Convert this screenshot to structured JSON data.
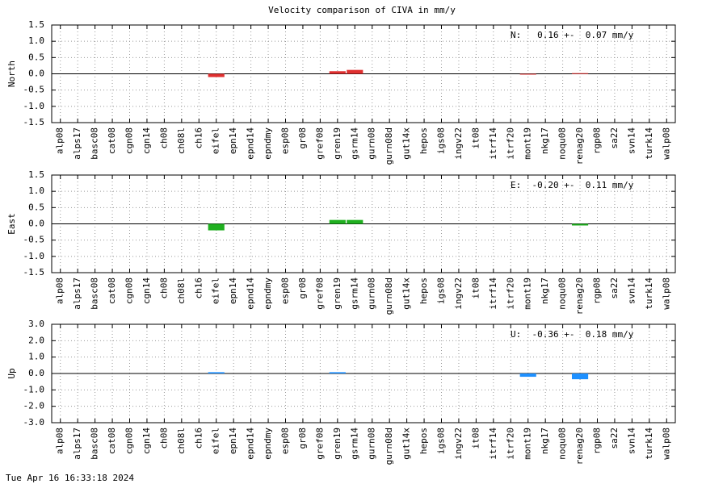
{
  "title": "Velocity comparison of CIVA in mm/y",
  "footer": "Tue Apr 16 16:33:18 2024",
  "chart_data": [
    {
      "type": "bar",
      "ylabel": "North",
      "annotation": "N:   0.16 +-  0.07 mm/y",
      "color": "#e03030",
      "grid": true,
      "categories": [
        "alp08",
        "alps17",
        "basc08",
        "cat08",
        "cgn08",
        "cgn14",
        "ch08",
        "ch08l",
        "ch16",
        "eifel",
        "epn14",
        "epnd14",
        "epndmy",
        "esp08",
        "gr08",
        "gref08",
        "gren19",
        "gsrm14",
        "gurn08",
        "gurn08d",
        "gut14x",
        "hepos",
        "igs08",
        "ingv22",
        "it08",
        "itrf14",
        "itrf20",
        "mont19",
        "nkg17",
        "noqu08",
        "renag20",
        "rgp08",
        "sa22",
        "svn14",
        "turk14",
        "walp08"
      ],
      "values": [
        null,
        null,
        null,
        null,
        null,
        null,
        null,
        null,
        null,
        -0.1,
        null,
        null,
        null,
        null,
        null,
        null,
        0.08,
        0.12,
        null,
        null,
        null,
        null,
        null,
        null,
        null,
        null,
        null,
        -0.02,
        null,
        null,
        0.02,
        null,
        null,
        null,
        null,
        null
      ],
      "ylim": [
        -1.5,
        1.5
      ],
      "yticks": [
        1.5,
        {
          "value": 1,
          "label": "1.0"
        },
        0.5,
        {
          "value": 0,
          "label": "0.0"
        },
        -0.5,
        {
          "value": -1,
          "label": "-1.0"
        },
        -1.5
      ]
    },
    {
      "type": "bar",
      "ylabel": "East",
      "annotation": "E:  -0.20 +-  0.11 mm/y",
      "color": "#20b020",
      "grid": true,
      "categories": [
        "alp08",
        "alps17",
        "basc08",
        "cat08",
        "cgn08",
        "cgn14",
        "ch08",
        "ch08l",
        "ch16",
        "eifel",
        "epn14",
        "epnd14",
        "epndmy",
        "esp08",
        "gr08",
        "gref08",
        "gren19",
        "gsrm14",
        "gurn08",
        "gurn08d",
        "gut14x",
        "hepos",
        "igs08",
        "ingv22",
        "it08",
        "itrf14",
        "itrf20",
        "mont19",
        "nkg17",
        "noqu08",
        "renag20",
        "rgp08",
        "sa22",
        "svn14",
        "turk14",
        "walp08"
      ],
      "values": [
        null,
        null,
        null,
        null,
        null,
        null,
        null,
        null,
        null,
        -0.2,
        null,
        null,
        null,
        null,
        null,
        null,
        0.12,
        0.12,
        null,
        null,
        null,
        null,
        null,
        null,
        null,
        null,
        null,
        null,
        null,
        null,
        -0.05,
        null,
        null,
        null,
        null,
        null
      ],
      "ylim": [
        -1.5,
        1.5
      ],
      "yticks": [
        1.5,
        {
          "value": 1,
          "label": "1.0"
        },
        0.5,
        {
          "value": 0,
          "label": "0.0"
        },
        -0.5,
        {
          "value": -1,
          "label": "-1.0"
        },
        -1.5
      ]
    },
    {
      "type": "bar",
      "ylabel": "Up",
      "annotation": "U:  -0.36 +-  0.18 mm/y",
      "color": "#1e90ff",
      "grid": true,
      "categories": [
        "alp08",
        "alps17",
        "basc08",
        "cat08",
        "cgn08",
        "cgn14",
        "ch08",
        "ch08l",
        "ch16",
        "eifel",
        "epn14",
        "epnd14",
        "epndmy",
        "esp08",
        "gr08",
        "gref08",
        "gren19",
        "gsrm14",
        "gurn08",
        "gurn08d",
        "gut14x",
        "hepos",
        "igs08",
        "ingv22",
        "it08",
        "itrf14",
        "itrf20",
        "mont19",
        "nkg17",
        "noqu08",
        "renag20",
        "rgp08",
        "sa22",
        "svn14",
        "turk14",
        "walp08"
      ],
      "values": [
        null,
        null,
        null,
        null,
        null,
        null,
        null,
        null,
        null,
        0.08,
        null,
        null,
        null,
        null,
        null,
        null,
        0.08,
        null,
        null,
        null,
        null,
        null,
        null,
        null,
        null,
        null,
        null,
        -0.2,
        null,
        null,
        -0.35,
        null,
        null,
        null,
        null,
        null
      ],
      "ylim": [
        -3,
        3
      ],
      "yticks": [
        {
          "value": 3,
          "label": "3.0"
        },
        {
          "value": 2,
          "label": "2.0"
        },
        {
          "value": 1,
          "label": "1.0"
        },
        {
          "value": 0,
          "label": "0.0"
        },
        {
          "value": -1,
          "label": "-1.0"
        },
        {
          "value": -2,
          "label": "-2.0"
        },
        {
          "value": -3,
          "label": "-3.0"
        }
      ]
    }
  ]
}
